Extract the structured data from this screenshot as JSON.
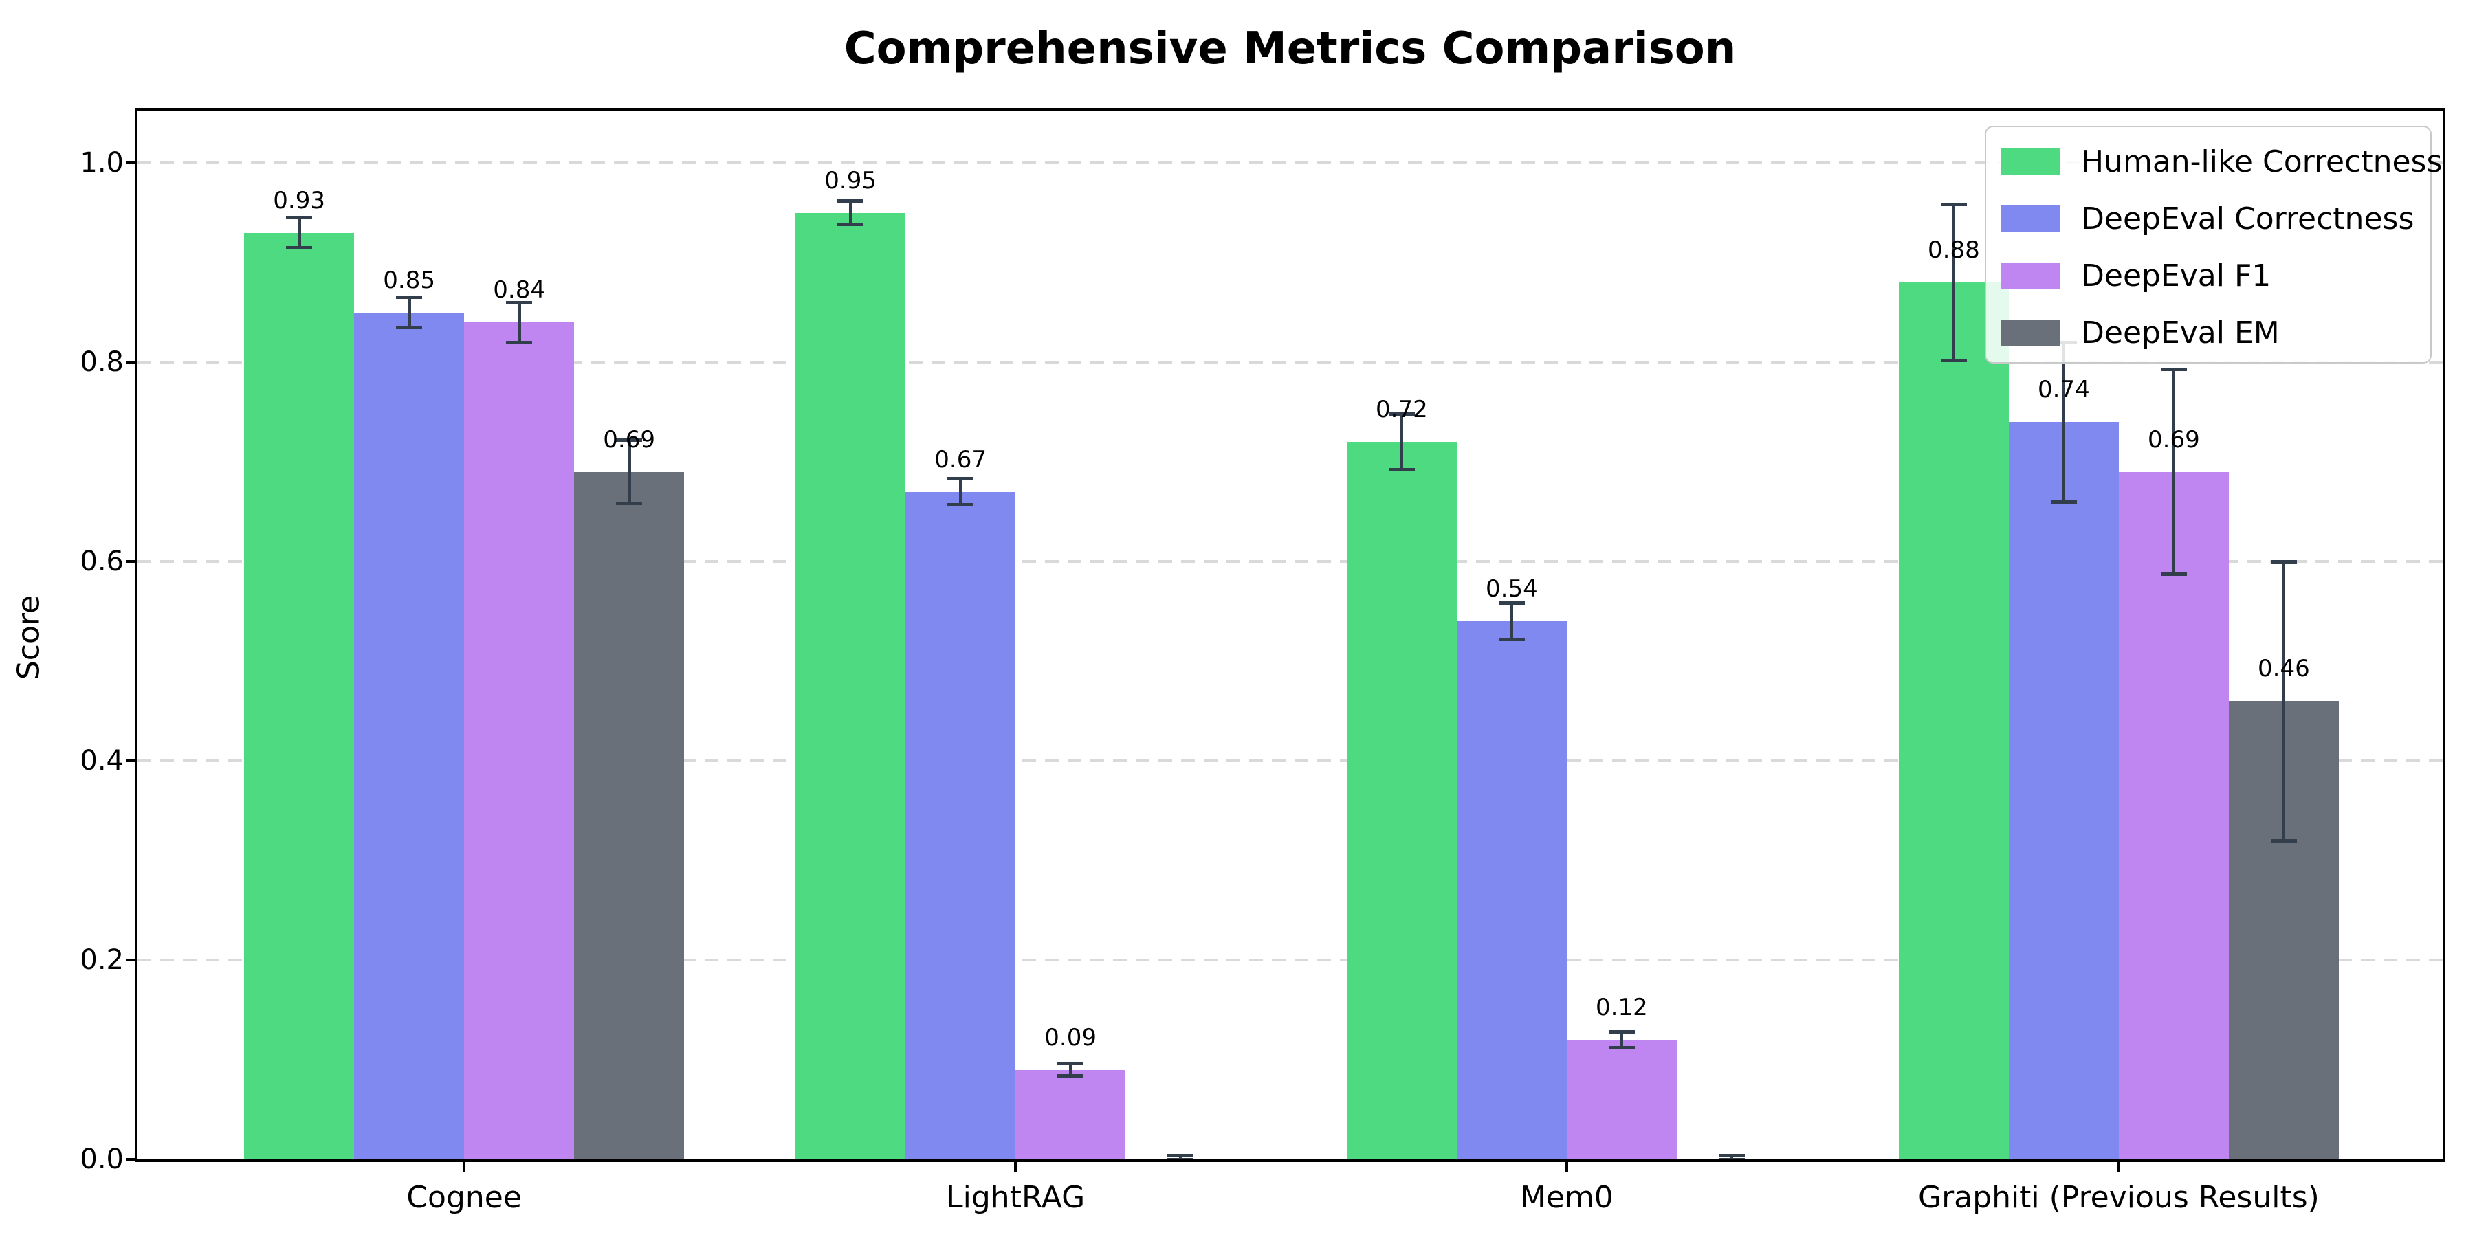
{
  "chart_data": {
    "type": "bar",
    "title": "Comprehensive Metrics Comparison",
    "xlabel": "",
    "ylabel": "Score",
    "categories": [
      "Cognee",
      "LightRAG",
      "Mem0",
      "Graphiti (Previous Results)"
    ],
    "y_ticks": [
      "0.0",
      "0.2",
      "0.4",
      "0.6",
      "0.8",
      "1.0"
    ],
    "y_tick_values": [
      0.0,
      0.2,
      0.4,
      0.6,
      0.8,
      1.0
    ],
    "ylim": [
      0,
      1.05
    ],
    "grid": {
      "axis": "y",
      "style": "dashed",
      "color": "#d9d9d9"
    },
    "legend_position": "upper right",
    "error_bar_color": "#333e4d",
    "series": [
      {
        "name": "Human-like Correctness",
        "color": "#4dda81",
        "values": [
          0.93,
          0.95,
          0.72,
          0.88
        ],
        "errors": [
          0.015,
          0.012,
          0.028,
          0.078
        ],
        "bar_labels": [
          "0.93",
          "0.95",
          "0.72",
          "0.88"
        ]
      },
      {
        "name": "DeepEval Correctness",
        "color": "#8089f0",
        "values": [
          0.85,
          0.67,
          0.54,
          0.74
        ],
        "errors": [
          0.015,
          0.013,
          0.018,
          0.08
        ],
        "bar_labels": [
          "0.85",
          "0.67",
          "0.54",
          "0.74"
        ]
      },
      {
        "name": "DeepEval F1",
        "color": "#bf86f2",
        "values": [
          0.84,
          0.09,
          0.12,
          0.69
        ],
        "errors": [
          0.02,
          0.006,
          0.008,
          0.103
        ],
        "bar_labels": [
          "0.84",
          "0.09",
          "0.12",
          "0.69"
        ]
      },
      {
        "name": "DeepEval EM",
        "color": "#697079",
        "values": [
          0.69,
          0.0,
          0.0,
          0.46
        ],
        "errors": [
          0.032,
          0.004,
          0.004,
          0.14
        ],
        "bar_labels": [
          "0.69",
          "",
          "",
          "0.46"
        ]
      }
    ]
  }
}
